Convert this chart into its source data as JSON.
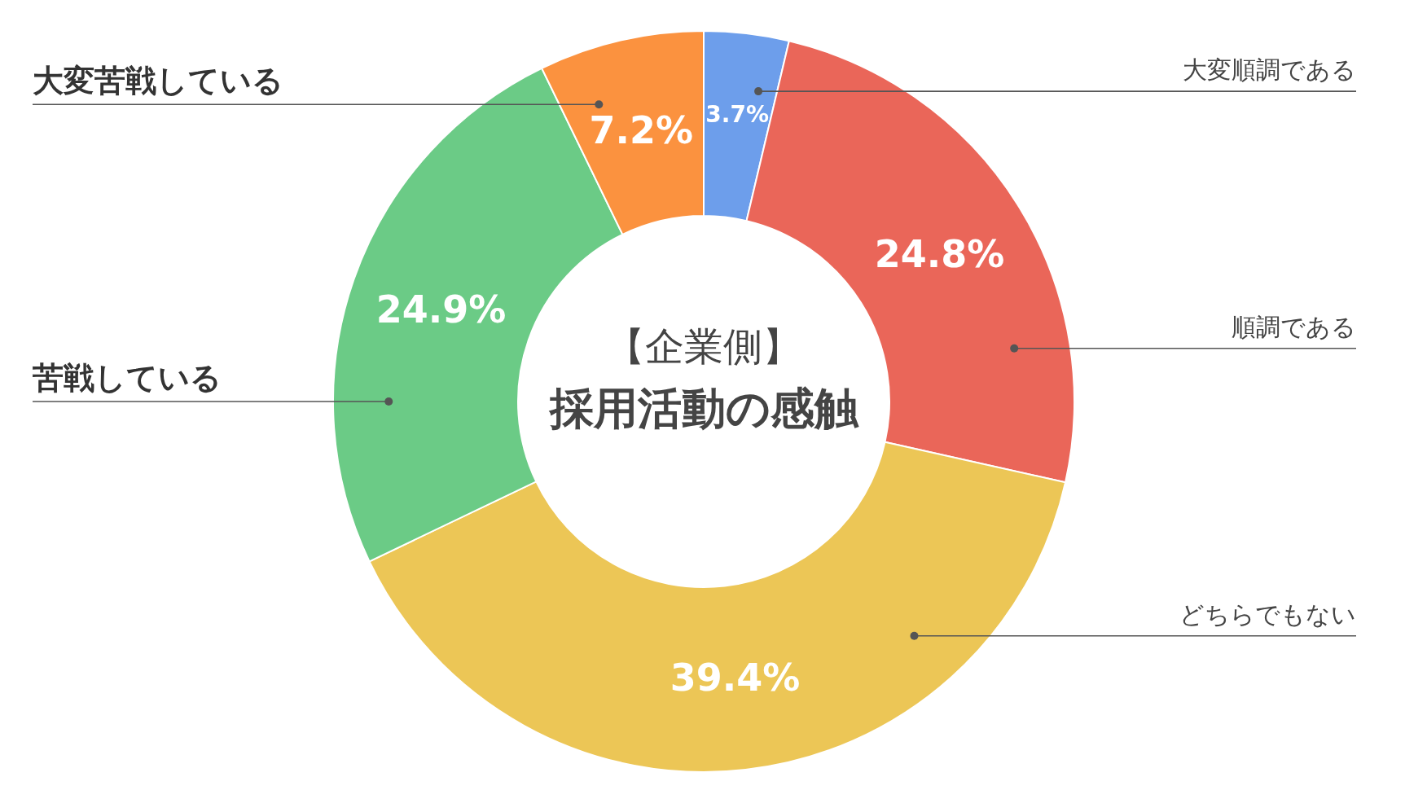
{
  "chart_data": {
    "type": "donut",
    "title": "採用活動の感触",
    "subtitle": "【企業側】",
    "categories": [
      "大変順調である",
      "順調である",
      "どちらでもない",
      "苦戦している",
      "大変苦戦している"
    ],
    "values": [
      3.7,
      24.8,
      39.4,
      24.9,
      7.2
    ],
    "value_labels": [
      "3.7%",
      "24.8%",
      "39.4%",
      "24.9%",
      "7.2%"
    ],
    "colors": [
      "#6d9eeb",
      "#ea6659",
      "#ecc656",
      "#6bcb86",
      "#fb923f"
    ]
  }
}
